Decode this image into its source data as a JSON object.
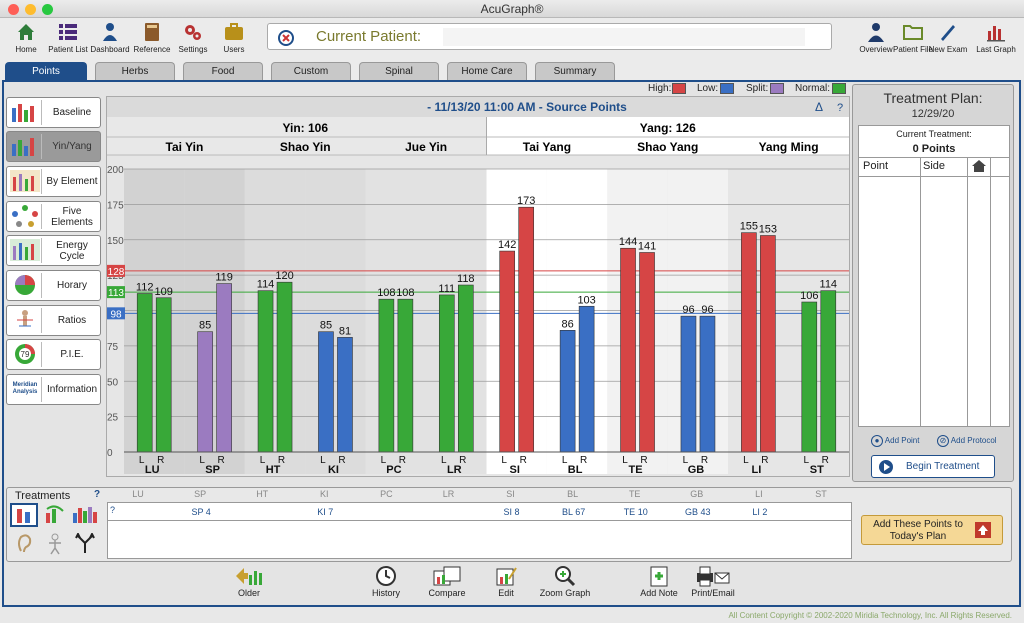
{
  "window": {
    "title": "AcuGraph®"
  },
  "toolbar": {
    "items": [
      {
        "label": "Home",
        "icon": "home-icon"
      },
      {
        "label": "Patient List",
        "icon": "list-icon"
      },
      {
        "label": "Dashboard",
        "icon": "dashboard-icon"
      },
      {
        "label": "Reference",
        "icon": "book-icon"
      },
      {
        "label": "Settings",
        "icon": "gears-icon"
      },
      {
        "label": "Users",
        "icon": "briefcase-icon"
      }
    ],
    "right_items": [
      {
        "label": "Overview",
        "icon": "person-icon"
      },
      {
        "label": "Patient File",
        "icon": "folder-icon"
      },
      {
        "label": "New Exam",
        "icon": "pen-icon"
      },
      {
        "label": "Last Graph",
        "icon": "graph-icon"
      }
    ],
    "current_patient_label": "Current Patient:",
    "current_patient_value": ""
  },
  "tabs": [
    "Points",
    "Herbs",
    "Food",
    "Custom",
    "Spinal",
    "Home Care",
    "Summary"
  ],
  "sidebar": [
    {
      "label": "Baseline",
      "icon": "baseline-icon"
    },
    {
      "label": "Yin/Yang",
      "icon": "yin-yang-icon",
      "selected": true
    },
    {
      "label": "By Element",
      "icon": "element-icon"
    },
    {
      "label": "Five Elements",
      "icon": "five-elements-icon"
    },
    {
      "label": "Energy Cycle",
      "icon": "energy-cycle-icon"
    },
    {
      "label": "Horary",
      "icon": "horary-icon"
    },
    {
      "label": "Ratios",
      "icon": "ratios-icon"
    },
    {
      "label": "P.I.E.",
      "icon": "pie-icon"
    },
    {
      "label": "Information",
      "icon": "meridian-analysis-icon",
      "icon_text": "Meridian Analysis"
    }
  ],
  "legend": [
    {
      "label": "High:",
      "color": "#d64545"
    },
    {
      "label": "Low:",
      "color": "#3a6fc4"
    },
    {
      "label": "Split:",
      "color": "#9b7bc0"
    },
    {
      "label": "Normal:",
      "color": "#38a838"
    }
  ],
  "chart_data": {
    "type": "bar",
    "title": "- 11/13/20 11:00 AM - Source Points",
    "delta_label": "Δ",
    "help_label": "?",
    "yin_header": "Yin: 106",
    "yang_header": "Yang: 126",
    "groups": [
      "Tai Yin",
      "Shao Yin",
      "Jue Yin",
      "Tai Yang",
      "Shao Yang",
      "Yang Ming"
    ],
    "ylim": [
      0,
      200
    ],
    "yticks": [
      0,
      25,
      50,
      75,
      100,
      125,
      150,
      175,
      200
    ],
    "reference_lines": [
      {
        "label": "128",
        "value": 128,
        "color": "#d64545"
      },
      {
        "label": "113",
        "value": 113,
        "color": "#38a838"
      },
      {
        "label": "98",
        "value": 98,
        "color": "#3a6fc4"
      }
    ],
    "meridians": [
      {
        "name": "LU",
        "L": 112,
        "R": 109,
        "cL": "#38a838",
        "cR": "#38a838"
      },
      {
        "name": "SP",
        "L": 85,
        "R": 119,
        "cL": "#9b7bc0",
        "cR": "#9b7bc0"
      },
      {
        "name": "HT",
        "L": 114,
        "R": 120,
        "cL": "#38a838",
        "cR": "#38a838"
      },
      {
        "name": "KI",
        "L": 85,
        "R": 81,
        "cL": "#3a6fc4",
        "cR": "#3a6fc4"
      },
      {
        "name": "PC",
        "L": 108,
        "R": 108,
        "cL": "#38a838",
        "cR": "#38a838"
      },
      {
        "name": "LR",
        "L": 111,
        "R": 118,
        "cL": "#38a838",
        "cR": "#38a838"
      },
      {
        "name": "SI",
        "L": 142,
        "R": 173,
        "cL": "#d64545",
        "cR": "#d64545"
      },
      {
        "name": "BL",
        "L": 86,
        "R": 103,
        "cL": "#3a6fc4",
        "cR": "#3a6fc4"
      },
      {
        "name": "TE",
        "L": 144,
        "R": 141,
        "cL": "#d64545",
        "cR": "#d64545"
      },
      {
        "name": "GB",
        "L": 96,
        "R": 96,
        "cL": "#3a6fc4",
        "cR": "#3a6fc4"
      },
      {
        "name": "LI",
        "L": 155,
        "R": 153,
        "cL": "#d64545",
        "cR": "#d64545"
      },
      {
        "name": "ST",
        "L": 106,
        "R": 114,
        "cL": "#38a838",
        "cR": "#38a838"
      }
    ],
    "side_labels": [
      "L",
      "R"
    ]
  },
  "treatment_plan": {
    "title": "Treatment Plan:",
    "date": "12/29/20",
    "current_treatment_label": "Current Treatment:",
    "points_count": "0 Points",
    "columns": [
      "Point",
      "Side"
    ],
    "add_point": "Add Point",
    "add_protocol": "Add Protocol",
    "begin_treatment": "Begin Treatment"
  },
  "treatments": {
    "title": "Treatments",
    "help": "?",
    "columns": [
      "LU",
      "SP",
      "HT",
      "KI",
      "PC",
      "LR",
      "SI",
      "BL",
      "TE",
      "GB",
      "LI",
      "ST"
    ],
    "row_marker": "?",
    "points": [
      "",
      "SP 4",
      "",
      "KI 7",
      "",
      "",
      "SI 8",
      "BL 67",
      "TE 10",
      "GB 43",
      "LI 2",
      ""
    ],
    "add_button": "Add These Points to Today's Plan"
  },
  "bottombar": [
    {
      "label": "Older",
      "icon": "older-icon"
    },
    {
      "label": "History",
      "icon": "clock-icon"
    },
    {
      "label": "Compare",
      "icon": "compare-icon"
    },
    {
      "label": "Edit",
      "icon": "edit-icon"
    },
    {
      "label": "Zoom Graph",
      "icon": "zoom-icon"
    },
    {
      "label": "Add Note",
      "icon": "add-note-icon"
    },
    {
      "label": "Print/Email",
      "icon": "print-email-icon"
    }
  ],
  "footer": "All Content Copyright © 2002-2020 Miridia Technology, Inc.  All Rights Reserved."
}
